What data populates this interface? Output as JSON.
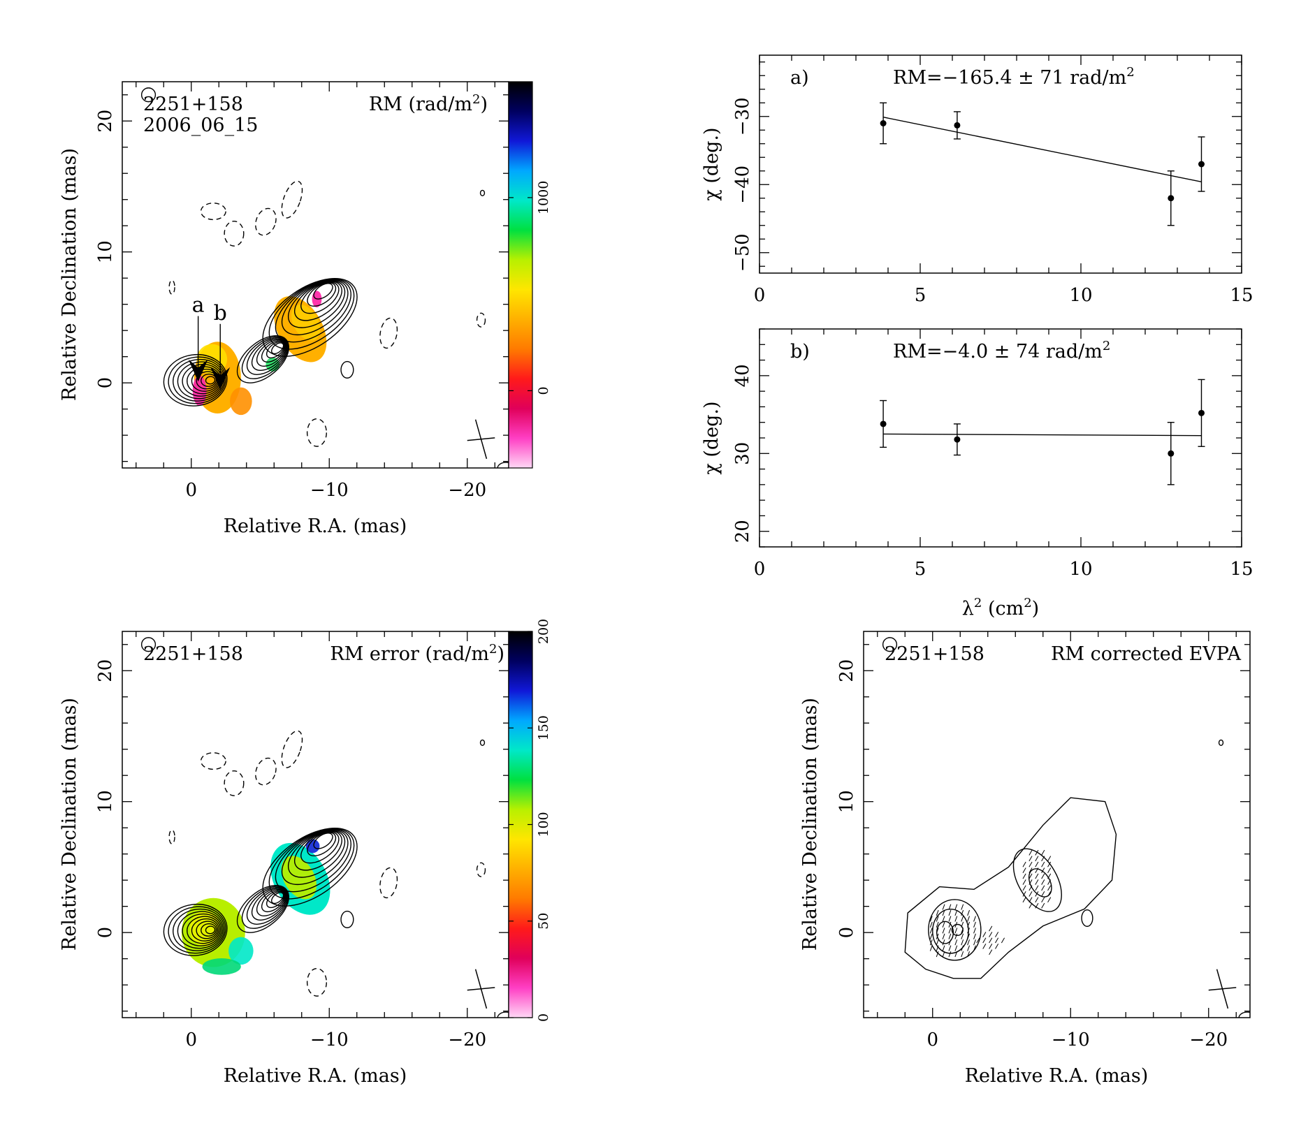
{
  "panels": {
    "rm_map": {
      "source": "2251+158",
      "date": "2006_06_15",
      "quantity": "RM (rad/m",
      "quantity_sup": "2",
      "quantity_end": ")",
      "xlabel": "Relative R.A. (mas)",
      "ylabel": "Relative Declination (mas)",
      "xlim": [
        5,
        -23
      ],
      "ylim": [
        -6.5,
        23
      ],
      "x_ticks": [
        {
          "v": 0,
          "t": "0"
        },
        {
          "v": -10,
          "t": "−10"
        },
        {
          "v": -20,
          "t": "−20"
        }
      ],
      "y_ticks": [
        {
          "v": 0,
          "t": "0"
        },
        {
          "v": 10,
          "t": "10"
        },
        {
          "v": 20,
          "t": "20"
        }
      ],
      "colorbar": {
        "range": [
          -400,
          1600
        ],
        "ticks": [
          {
            "v": 0,
            "t": "0"
          },
          {
            "v": 1000,
            "t": "1000"
          }
        ],
        "stops": [
          "#ffd8f5",
          "#ff3fc4",
          "#e0005a",
          "#ff1a1a",
          "#ff7a00",
          "#ffb000",
          "#ffe600",
          "#b8f000",
          "#00e040",
          "#00e8c8",
          "#00a8ff",
          "#1018d8",
          "#000060",
          "#000000"
        ]
      },
      "markers": [
        {
          "name": "a",
          "x": -0.5,
          "y": 0.3
        },
        {
          "name": "b",
          "x": -2.1,
          "y": -0.3
        }
      ]
    },
    "rm_error_map": {
      "source": "2251+158",
      "quantity": "RM error (rad/m",
      "quantity_sup": "2",
      "quantity_end": ")",
      "xlabel": "Relative R.A. (mas)",
      "ylabel": "Relative Declination (mas)",
      "xlim": [
        5,
        -23
      ],
      "ylim": [
        -6.5,
        23
      ],
      "x_ticks": [
        {
          "v": 0,
          "t": "0"
        },
        {
          "v": -10,
          "t": "−10"
        },
        {
          "v": -20,
          "t": "−20"
        }
      ],
      "y_ticks": [
        {
          "v": 0,
          "t": "0"
        },
        {
          "v": 10,
          "t": "10"
        },
        {
          "v": 20,
          "t": "20"
        }
      ],
      "colorbar": {
        "range": [
          0,
          200
        ],
        "ticks": [
          {
            "v": 0,
            "t": "0"
          },
          {
            "v": 50,
            "t": "50"
          },
          {
            "v": 100,
            "t": "100"
          },
          {
            "v": 150,
            "t": "150"
          },
          {
            "v": 200,
            "t": "200"
          }
        ],
        "stops": [
          "#ffd8f5",
          "#ff3fc4",
          "#e0005a",
          "#ff1a1a",
          "#ff7a00",
          "#ffb000",
          "#ffe600",
          "#b8f000",
          "#00e040",
          "#00e8c8",
          "#00a8ff",
          "#1018d8",
          "#000060",
          "#000000"
        ]
      }
    },
    "evpa_map": {
      "source": "2251+158",
      "quantity": "RM corrected EVPA",
      "xlabel": "Relative R.A. (mas)",
      "ylabel": "Relative Declination (mas)",
      "xlim": [
        5,
        -23
      ],
      "ylim": [
        -6.5,
        23
      ],
      "x_ticks": [
        {
          "v": 0,
          "t": "0"
        },
        {
          "v": -10,
          "t": "−10"
        },
        {
          "v": -20,
          "t": "−20"
        }
      ],
      "y_ticks": [
        {
          "v": 0,
          "t": "0"
        },
        {
          "v": 10,
          "t": "10"
        },
        {
          "v": 20,
          "t": "20"
        }
      ]
    }
  },
  "chart_data": [
    {
      "type": "scatter",
      "label": "a)",
      "title": "RM=−165.4 ± 71 rad/m",
      "title_sup": "2",
      "xlabel": "",
      "ylabel": "χ (deg.)",
      "xlim": [
        0,
        15
      ],
      "ylim": [
        -53,
        -21
      ],
      "x_ticks": [
        {
          "v": 0,
          "t": "0"
        },
        {
          "v": 5,
          "t": "5"
        },
        {
          "v": 10,
          "t": "10"
        },
        {
          "v": 15,
          "t": "15"
        }
      ],
      "y_ticks": [
        {
          "v": -30,
          "t": "−30"
        },
        {
          "v": -40,
          "t": "−40"
        },
        {
          "v": -50,
          "t": "−50"
        }
      ],
      "x": [
        3.85,
        6.15,
        12.8,
        13.75
      ],
      "y": [
        -31.0,
        -31.3,
        -42.0,
        -37.0
      ],
      "yerr": [
        3.0,
        2.0,
        4.0,
        4.0
      ],
      "fit": {
        "x": [
          3.85,
          13.75
        ],
        "y": [
          -30.1,
          -39.6
        ]
      }
    },
    {
      "type": "scatter",
      "label": "b)",
      "title": "RM=−4.0 ± 74 rad/m",
      "title_sup": "2",
      "xlabel": "λ",
      "xlabel_sup": "2",
      "xlabel_end": " (cm",
      "xlabel_sup2": "2",
      "xlabel_close": ")",
      "ylabel": "χ (deg.)",
      "xlim": [
        0,
        15
      ],
      "ylim": [
        18,
        46
      ],
      "x_ticks": [
        {
          "v": 0,
          "t": "0"
        },
        {
          "v": 5,
          "t": "5"
        },
        {
          "v": 10,
          "t": "10"
        },
        {
          "v": 15,
          "t": "15"
        }
      ],
      "y_ticks": [
        {
          "v": 20,
          "t": "20"
        },
        {
          "v": 30,
          "t": "30"
        },
        {
          "v": 40,
          "t": "40"
        }
      ],
      "x": [
        3.85,
        6.15,
        12.8,
        13.75
      ],
      "y": [
        33.8,
        31.8,
        30.0,
        35.2
      ],
      "yerr": [
        3.0,
        2.0,
        4.0,
        4.3
      ],
      "fit": {
        "x": [
          3.85,
          13.75
        ],
        "y": [
          32.5,
          32.3
        ]
      }
    }
  ]
}
